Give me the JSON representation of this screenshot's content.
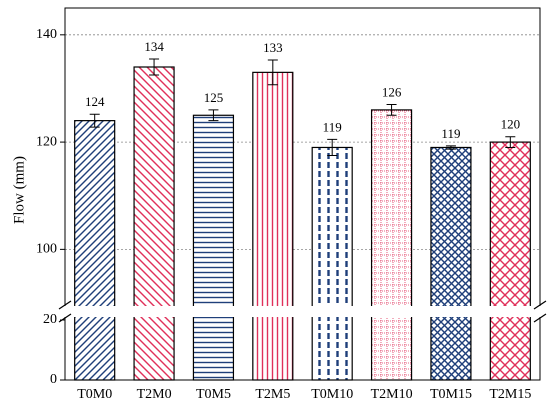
{
  "chart_data": {
    "type": "bar",
    "y_axis_label": "Flow (mm)",
    "categories": [
      "T0M0",
      "T2M0",
      "T0M5",
      "T2M5",
      "T0M10",
      "T2M10",
      "T0M15",
      "T2M15"
    ],
    "values": [
      124,
      134,
      125,
      133,
      119,
      126,
      119,
      120
    ],
    "errors": [
      1.2,
      1.5,
      1.0,
      2.3,
      1.5,
      1.0,
      0.3,
      1.0
    ],
    "colors": [
      "#1f3f7a",
      "#e0305a",
      "#1f3f7a",
      "#e0305a",
      "#1f3f7a",
      "#e0305a",
      "#1f3f7a",
      "#e0305a"
    ],
    "hatches": [
      "/",
      "\\",
      "-",
      "|",
      ":",
      "+",
      "x",
      "X"
    ],
    "ylim": [
      0,
      145
    ],
    "ybreak": [
      20,
      90
    ],
    "yticks": [
      0,
      20,
      100,
      120,
      140
    ],
    "grid": true
  }
}
